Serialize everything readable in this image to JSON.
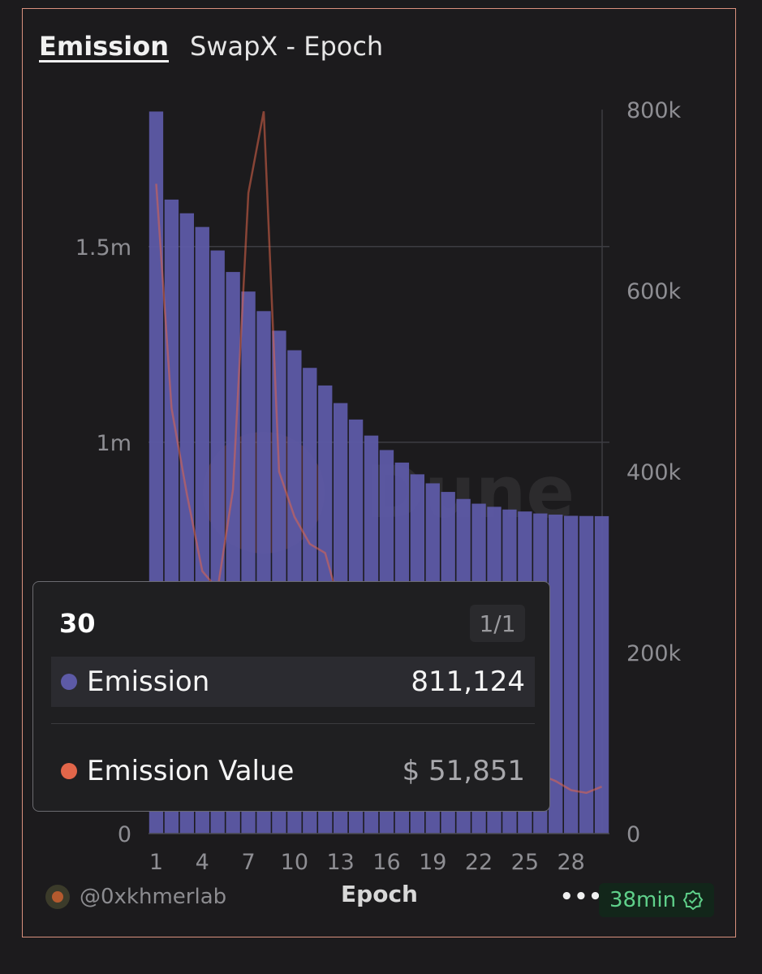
{
  "header": {
    "active_tab": "Emission",
    "subtitle": "SwapX - Epoch"
  },
  "watermark": "Dune",
  "colors": {
    "bar": "#5d5aa6",
    "line": "#e2664a",
    "background": "#1c1b1d",
    "border": "#d9917e",
    "badge_text": "#5fd08a"
  },
  "chart_data": {
    "type": "bar",
    "xlabel": "Epoch",
    "x_ticks": [
      "1",
      "4",
      "7",
      "10",
      "13",
      "16",
      "19",
      "22",
      "25",
      "28"
    ],
    "categories": [
      1,
      2,
      3,
      4,
      5,
      6,
      7,
      8,
      9,
      10,
      11,
      12,
      13,
      14,
      15,
      16,
      17,
      18,
      19,
      20,
      21,
      22,
      23,
      24,
      25,
      26,
      27,
      28,
      29,
      30
    ],
    "left_axis": {
      "ticks": [
        "0",
        "1m",
        "1.5m"
      ],
      "tick_values": [
        0,
        1000000,
        1500000
      ],
      "ylim": [
        0,
        1850000
      ]
    },
    "right_axis": {
      "ticks": [
        "0",
        "200k",
        "400k",
        "600k",
        "800k"
      ],
      "tick_values": [
        0,
        200000,
        400000,
        600000,
        800000
      ],
      "ylim": [
        0,
        800000
      ]
    },
    "series": [
      {
        "name": "Emission",
        "type": "bar",
        "axis": "left",
        "values": [
          1845000,
          1620000,
          1585000,
          1550000,
          1490000,
          1435000,
          1385000,
          1335000,
          1285000,
          1235000,
          1190000,
          1145000,
          1100000,
          1058000,
          1017000,
          980000,
          948000,
          918000,
          895000,
          873000,
          855000,
          843000,
          835000,
          828000,
          823000,
          818000,
          815000,
          812000,
          811500,
          811124
        ]
      },
      {
        "name": "Emission Value",
        "type": "line",
        "axis": "right",
        "values": [
          718000,
          470000,
          375000,
          290000,
          270000,
          380000,
          708000,
          798000,
          400000,
          350000,
          320000,
          310000,
          250000,
          200000,
          170000,
          150000,
          130000,
          115000,
          105000,
          95000,
          90000,
          85000,
          80000,
          75000,
          70000,
          65000,
          58000,
          48000,
          45000,
          51851
        ]
      }
    ]
  },
  "tooltip": {
    "title": "30",
    "page": "1/1",
    "rows": [
      {
        "label": "Emission",
        "value": "811,124",
        "color": "#5d5aa6"
      },
      {
        "label": "Emission Value",
        "value": "$ 51,851",
        "color": "#e2664a"
      }
    ]
  },
  "footer": {
    "user": "@0xkhmerlab",
    "more_label": "•••",
    "badge": "38min"
  }
}
